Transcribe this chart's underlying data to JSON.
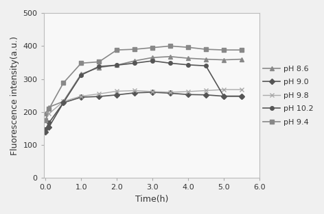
{
  "series": [
    {
      "label": "pH 8.6",
      "color": "#888888",
      "marker": "^",
      "markersize": 4,
      "linewidth": 1.2,
      "x": [
        0.0,
        0.1,
        0.5,
        1.0,
        1.5,
        2.0,
        2.5,
        3.0,
        3.5,
        4.0,
        4.5,
        5.0,
        5.5
      ],
      "y": [
        195,
        215,
        232,
        315,
        335,
        342,
        355,
        365,
        368,
        363,
        360,
        358,
        360
      ]
    },
    {
      "label": "pH 9.0",
      "color": "#555555",
      "marker": "D",
      "markersize": 4,
      "linewidth": 1.2,
      "x": [
        0.0,
        0.1,
        0.5,
        1.0,
        1.5,
        2.0,
        2.5,
        3.0,
        3.5,
        4.0,
        4.5,
        5.0,
        5.5
      ],
      "y": [
        140,
        155,
        228,
        245,
        247,
        252,
        258,
        260,
        257,
        253,
        252,
        248,
        248
      ]
    },
    {
      "label": "pH 9.8",
      "color": "#aaaaaa",
      "marker": "x",
      "markersize": 5,
      "linewidth": 1.0,
      "x": [
        0.0,
        0.1,
        0.5,
        1.0,
        1.5,
        2.0,
        2.5,
        3.0,
        3.5,
        4.0,
        4.5,
        5.0,
        5.5
      ],
      "y": [
        175,
        195,
        232,
        248,
        255,
        263,
        265,
        262,
        260,
        262,
        265,
        268,
        268
      ]
    },
    {
      "label": "pH 10.2",
      "color": "#555555",
      "marker": "o",
      "markersize": 4,
      "linewidth": 1.2,
      "x": [
        0.0,
        0.1,
        0.5,
        1.0,
        1.5,
        2.0,
        2.5,
        3.0,
        3.5,
        4.0,
        4.5,
        5.0,
        5.5
      ],
      "y": [
        148,
        168,
        228,
        312,
        338,
        342,
        348,
        355,
        348,
        343,
        340,
        248,
        248
      ]
    },
    {
      "label": "pH 9.4",
      "color": "#888888",
      "marker": "s",
      "markersize": 4,
      "linewidth": 1.2,
      "x": [
        0.0,
        0.1,
        0.5,
        1.0,
        1.5,
        2.0,
        2.5,
        3.0,
        3.5,
        4.0,
        4.5,
        5.0,
        5.5
      ],
      "y": [
        175,
        210,
        288,
        348,
        352,
        388,
        390,
        395,
        400,
        396,
        390,
        388,
        388
      ]
    }
  ],
  "xlabel": "Time(h)",
  "ylabel": "Fluorescence intensity(a.u.)",
  "xlim": [
    -0.05,
    5.8
  ],
  "ylim": [
    0,
    500
  ],
  "xticks": [
    0.0,
    1.0,
    2.0,
    3.0,
    4.0,
    5.0,
    6.0
  ],
  "xtick_labels": [
    "0.0",
    "1.0",
    "2.0",
    "3.0",
    "4.0",
    "5.0",
    "6.0"
  ],
  "yticks": [
    0,
    100,
    200,
    300,
    400,
    500
  ],
  "figsize": [
    4.72,
    3.13
  ],
  "dpi": 100,
  "bg_color": "#f5f5f5"
}
